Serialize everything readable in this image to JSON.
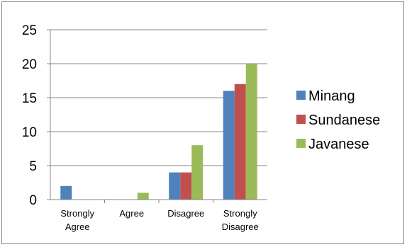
{
  "chart_data": {
    "type": "bar",
    "categories": [
      [
        "Strongly",
        "Agree"
      ],
      [
        "Agree"
      ],
      [
        "Disagree"
      ],
      [
        "Strongly",
        "Disagree"
      ]
    ],
    "series": [
      {
        "name": "Minang",
        "color": "#4F81BD",
        "values": [
          2,
          0,
          4,
          16
        ]
      },
      {
        "name": "Sundanese",
        "color": "#C0504D",
        "values": [
          0,
          0,
          4,
          17
        ]
      },
      {
        "name": "Javanese",
        "color": "#9BBB59",
        "values": [
          0,
          1,
          8,
          20
        ]
      }
    ],
    "ylim": [
      0,
      25
    ],
    "yticks": [
      0,
      5,
      10,
      15,
      20,
      25
    ],
    "grid": true,
    "legend": "right"
  }
}
